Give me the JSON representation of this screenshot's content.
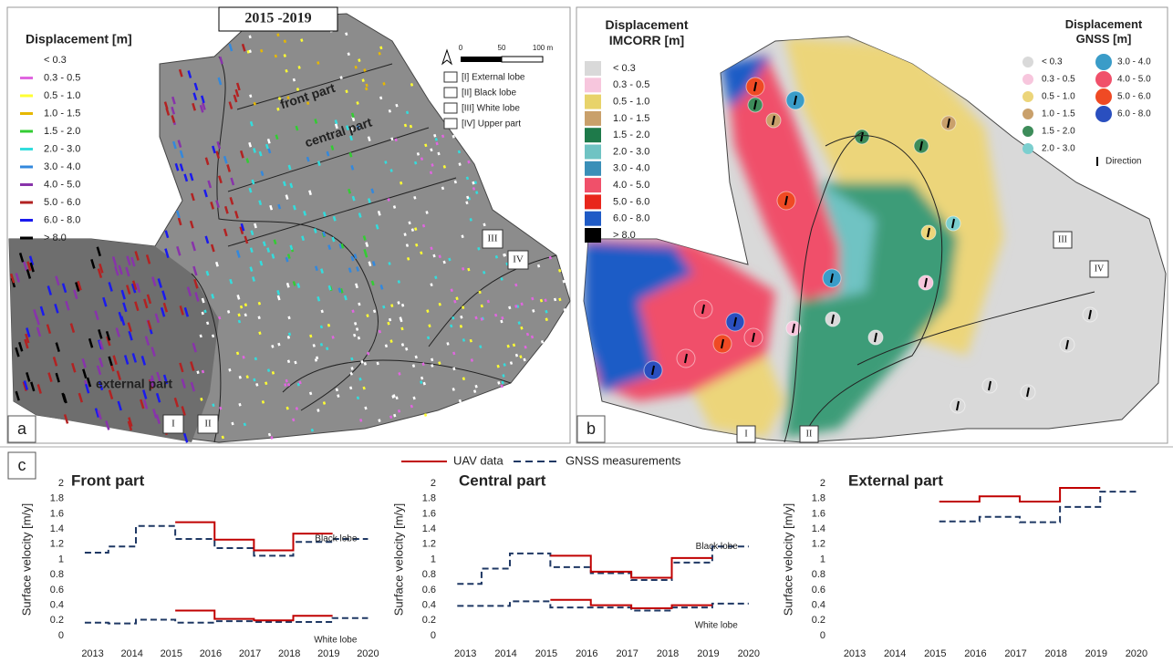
{
  "map_a": {
    "label": "a",
    "title": "2015 -2019",
    "legend_title": "Displacement [m]",
    "legend": [
      {
        "label": "< 0.3",
        "color": "#ffffff"
      },
      {
        "label": "0.3 - 0.5",
        "color": "#e066e0"
      },
      {
        "label": "0.5 - 1.0",
        "color": "#ffff33"
      },
      {
        "label": "1.0 - 1.5",
        "color": "#e6b800"
      },
      {
        "label": "1.5 - 2.0",
        "color": "#33cc33"
      },
      {
        "label": "2.0 - 3.0",
        "color": "#33dddd"
      },
      {
        "label": "3.0 - 4.0",
        "color": "#3388dd"
      },
      {
        "label": "4.0 - 5.0",
        "color": "#8833aa"
      },
      {
        "label": "5.0 - 6.0",
        "color": "#b22222"
      },
      {
        "label": "6.0 - 8.0",
        "color": "#1a1aee"
      },
      {
        "label": "> 8.0",
        "color": "#000000"
      }
    ],
    "scale": [
      "0",
      "50",
      "100 m"
    ],
    "lobes": [
      "[I]   External lobe",
      "[II]  Black lobe",
      "[III] White lobe",
      "[IV] Upper part"
    ],
    "parts": [
      "front part",
      "central part",
      "external part"
    ],
    "lobe_marks": [
      "I",
      "II",
      "III",
      "IV"
    ]
  },
  "map_b": {
    "label": "b",
    "legend_title": "Displacement\nIMCORR [m]",
    "legend": [
      {
        "label": "< 0.3",
        "color": "#d9d9d9"
      },
      {
        "label": "0.3 - 0.5",
        "color": "#f7c6dd"
      },
      {
        "label": "0.5 - 1.0",
        "color": "#e8d36a"
      },
      {
        "label": "1.0 - 1.5",
        "color": "#c9a06b"
      },
      {
        "label": "1.5 - 2.0",
        "color": "#1e7a4a"
      },
      {
        "label": "2.0 - 3.0",
        "color": "#6fc3c3"
      },
      {
        "label": "3.0 - 4.0",
        "color": "#3a8fb8"
      },
      {
        "label": "4.0 - 5.0",
        "color": "#f0506a"
      },
      {
        "label": "5.0 - 6.0",
        "color": "#e8261c"
      },
      {
        "label": "6.0 - 8.0",
        "color": "#1f5bc6"
      },
      {
        "label": "> 8.0",
        "color": "#000000"
      }
    ],
    "gnss_title": "Displacement\nGNSS [m]",
    "gnss_legend": [
      {
        "label": "< 0.3",
        "color": "#d9d9d9"
      },
      {
        "label": "0.3 - 0.5",
        "color": "#f7c6dd"
      },
      {
        "label": "0.5 - 1.0",
        "color": "#ecd57a"
      },
      {
        "label": "1.0 - 1.5",
        "color": "#c9a06b"
      },
      {
        "label": "1.5 - 2.0",
        "color": "#3d8c5a"
      },
      {
        "label": "2.0 - 3.0",
        "color": "#7ccfcf"
      },
      {
        "label": "3.0 - 4.0",
        "color": "#3a9cc8"
      },
      {
        "label": "4.0 - 5.0",
        "color": "#f0506a"
      },
      {
        "label": "5.0 - 6.0",
        "color": "#ef4a24"
      },
      {
        "label": "6.0 - 8.0",
        "color": "#2a4fbf"
      }
    ],
    "direction": "Direction",
    "lobe_marks": [
      "I",
      "II",
      "III",
      "IV"
    ]
  },
  "panel_c": {
    "label": "c",
    "legend": [
      {
        "name": "UAV data",
        "color": "#c00000",
        "dash": false
      },
      {
        "name": "GNSS measurements",
        "color": "#1f3864",
        "dash": true
      }
    ]
  },
  "chart_data": [
    {
      "type": "line",
      "title": "Front part",
      "ylabel": "Surface velocity [m/y]",
      "x": [
        2012.8,
        2013.4,
        2013.4,
        2014.1,
        2014.1,
        2015.1,
        2015.1,
        2016.1,
        2016.1,
        2017.1,
        2017.1,
        2018.1,
        2018.1,
        2019.1,
        2019.1,
        2020.0
      ],
      "xlim": [
        2012.5,
        2020.5
      ],
      "xticks": [
        2013,
        2014,
        2015,
        2016,
        2017,
        2018,
        2019,
        2020
      ],
      "ylim": [
        0,
        2
      ],
      "yticks": [
        0,
        0.2,
        0.4,
        0.6,
        0.8,
        1,
        1.2,
        1.4,
        1.6,
        1.8,
        2
      ],
      "series": [
        {
          "color": "#1f3864",
          "dash": true,
          "label": "Black lobe",
          "values": [
            1.09,
            1.09,
            1.17,
            1.17,
            1.44,
            1.44,
            1.27,
            1.27,
            1.15,
            1.15,
            1.05,
            1.05,
            1.23,
            1.23,
            1.27,
            1.27
          ]
        },
        {
          "color": "#c00000",
          "dash": false,
          "values": [
            null,
            null,
            null,
            null,
            null,
            null,
            1.49,
            1.49,
            1.26,
            1.26,
            1.12,
            1.12,
            1.34,
            1.34,
            null,
            null
          ]
        },
        {
          "color": "#1f3864",
          "dash": true,
          "label": "White lobe",
          "values": [
            0.17,
            0.17,
            0.16,
            0.16,
            0.21,
            0.21,
            0.17,
            0.17,
            0.19,
            0.19,
            0.18,
            0.18,
            0.18,
            0.18,
            0.23,
            0.23
          ]
        },
        {
          "color": "#c00000",
          "dash": false,
          "values": [
            null,
            null,
            null,
            null,
            null,
            null,
            0.33,
            0.33,
            0.22,
            0.22,
            0.2,
            0.2,
            0.26,
            0.26,
            null,
            null
          ]
        }
      ]
    },
    {
      "type": "line",
      "title": "Central part",
      "ylabel": "Surface velocity [m/y]",
      "x": [
        2012.8,
        2013.4,
        2013.4,
        2014.1,
        2014.1,
        2015.1,
        2015.1,
        2016.1,
        2016.1,
        2017.1,
        2017.1,
        2018.1,
        2018.1,
        2019.1,
        2019.1,
        2020.0
      ],
      "xlim": [
        2012.5,
        2020.5
      ],
      "xticks": [
        2013,
        2014,
        2015,
        2016,
        2017,
        2018,
        2019,
        2020
      ],
      "ylim": [
        0,
        2
      ],
      "yticks": [
        0,
        0.2,
        0.4,
        0.6,
        0.8,
        1,
        1.2,
        1.4,
        1.6,
        1.8,
        2
      ],
      "series": [
        {
          "color": "#1f3864",
          "dash": true,
          "label": "Black lobe",
          "values": [
            0.68,
            0.68,
            0.88,
            0.88,
            1.08,
            1.08,
            0.9,
            0.9,
            0.82,
            0.82,
            0.73,
            0.73,
            0.96,
            0.96,
            1.17,
            1.17
          ]
        },
        {
          "color": "#c00000",
          "dash": false,
          "values": [
            null,
            null,
            null,
            null,
            null,
            null,
            1.05,
            1.05,
            0.84,
            0.84,
            0.76,
            0.76,
            1.02,
            1.02,
            null,
            null
          ]
        },
        {
          "color": "#1f3864",
          "dash": true,
          "label": "White lobe",
          "values": [
            0.39,
            0.39,
            0.39,
            0.39,
            0.45,
            0.45,
            0.37,
            0.37,
            0.37,
            0.37,
            0.33,
            0.33,
            0.37,
            0.37,
            0.42,
            0.42
          ]
        },
        {
          "color": "#c00000",
          "dash": false,
          "values": [
            null,
            null,
            null,
            null,
            null,
            null,
            0.47,
            0.47,
            0.4,
            0.4,
            0.36,
            0.36,
            0.4,
            0.4,
            null,
            null
          ]
        }
      ]
    },
    {
      "type": "line",
      "title": "External part",
      "ylabel": "Surface velocity [m/y]",
      "x": [
        2012.8,
        2013.4,
        2013.4,
        2014.1,
        2014.1,
        2015.1,
        2015.1,
        2016.1,
        2016.1,
        2017.1,
        2017.1,
        2018.1,
        2018.1,
        2019.1,
        2019.1,
        2020.0
      ],
      "xlim": [
        2012.5,
        2020.5
      ],
      "xticks": [
        2013,
        2014,
        2015,
        2016,
        2017,
        2018,
        2019,
        2020
      ],
      "ylim": [
        0,
        2
      ],
      "yticks": [
        0,
        0.2,
        0.4,
        0.6,
        0.8,
        1,
        1.2,
        1.4,
        1.6,
        1.8,
        2
      ],
      "series": [
        {
          "color": "#1f3864",
          "dash": true,
          "values": [
            null,
            null,
            null,
            null,
            null,
            null,
            1.5,
            1.5,
            1.56,
            1.56,
            1.49,
            1.49,
            1.69,
            1.69,
            1.89,
            1.89
          ]
        },
        {
          "color": "#c00000",
          "dash": false,
          "values": [
            null,
            null,
            null,
            null,
            null,
            null,
            1.76,
            1.76,
            1.83,
            1.83,
            1.76,
            1.76,
            1.94,
            1.94,
            null,
            null
          ]
        }
      ]
    }
  ]
}
